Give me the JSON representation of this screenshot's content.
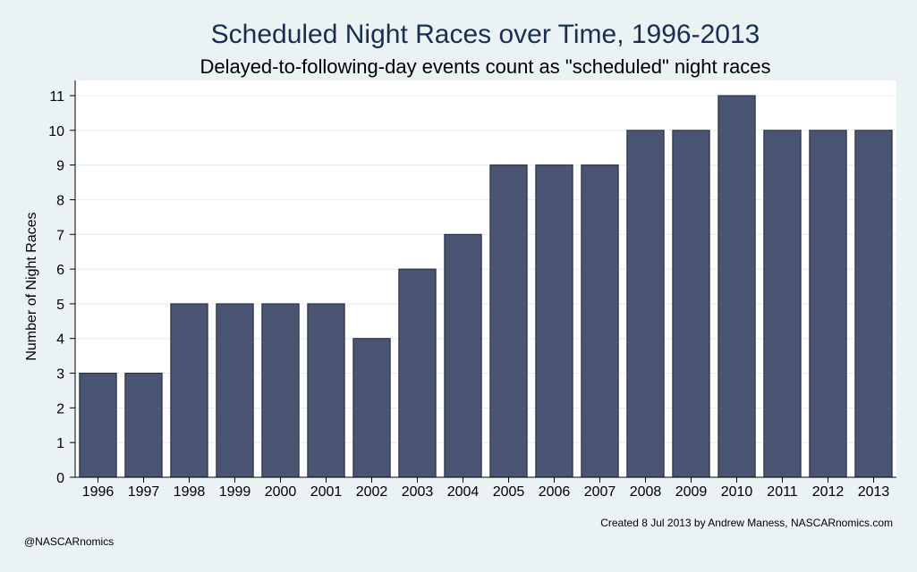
{
  "colors": {
    "page_background": "#eaf2f3",
    "plot_background": "#ffffff",
    "bar_fill": "#4a5573",
    "bar_stroke": "#1f2638",
    "gridline": "#e9f0f2",
    "title": "#1a2e52"
  },
  "notes": {
    "created": "Created  8 Jul 2013 by Andrew Maness, NASCARnomics.com",
    "handle": "@NASCARnomics"
  },
  "chart_data": {
    "type": "bar",
    "title": "Scheduled Night Races over Time, 1996-2013",
    "subtitle": "Delayed-to-following-day events count as \"scheduled\" night races",
    "xlabel": "",
    "ylabel": "Number of Night Races",
    "categories": [
      "1996",
      "1997",
      "1998",
      "1999",
      "2000",
      "2001",
      "2002",
      "2003",
      "2004",
      "2005",
      "2006",
      "2007",
      "2008",
      "2009",
      "2010",
      "2011",
      "2012",
      "2013"
    ],
    "values": [
      3,
      3,
      5,
      5,
      5,
      5,
      4,
      6,
      7,
      9,
      9,
      9,
      10,
      10,
      11,
      10,
      10,
      10
    ],
    "ylim": [
      0,
      11
    ],
    "yticks": [
      0,
      1,
      2,
      3,
      4,
      5,
      6,
      7,
      8,
      9,
      10,
      11
    ],
    "grid": true,
    "legend": "none"
  }
}
